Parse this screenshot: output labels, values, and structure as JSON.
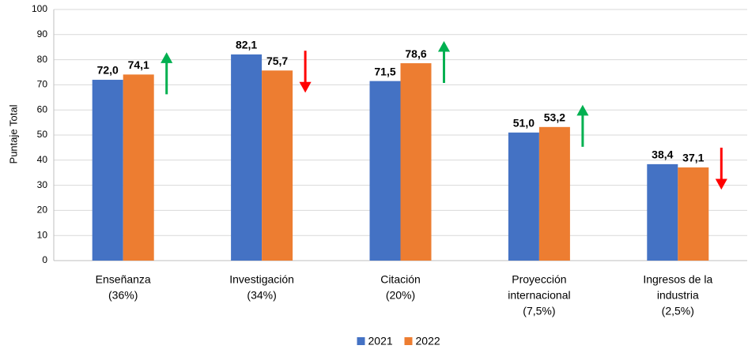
{
  "chart_data": {
    "type": "bar",
    "y_label": "Puntaje Total",
    "categories": [
      [
        "Enseñanza",
        "(36%)"
      ],
      [
        "Investigación",
        "(34%)"
      ],
      [
        "Citación",
        "(20%)"
      ],
      [
        "Proyección",
        "internacional",
        "(7,5%)"
      ],
      [
        "Ingresos de la",
        "industria",
        "(2,5%)"
      ]
    ],
    "series": [
      {
        "name": "2021",
        "color": "#4472c4",
        "values": [
          72.0,
          82.1,
          71.5,
          51.0,
          38.4
        ],
        "value_labels": [
          "72,0",
          "82,1",
          "71,5",
          "51,0",
          "38,4"
        ]
      },
      {
        "name": "2022",
        "color": "#ed7d31",
        "values": [
          74.1,
          75.7,
          78.6,
          53.2,
          37.1
        ],
        "value_labels": [
          "74,1",
          "75,7",
          "78,6",
          "53,2",
          "37,1"
        ]
      }
    ],
    "ylim": [
      0,
      100
    ],
    "yticks": [
      0,
      10,
      20,
      30,
      40,
      50,
      60,
      70,
      80,
      90,
      100
    ],
    "grid": true,
    "legend": "bottom",
    "arrow_colors": {
      "up": "#00b050",
      "down": "#ff0000"
    }
  }
}
